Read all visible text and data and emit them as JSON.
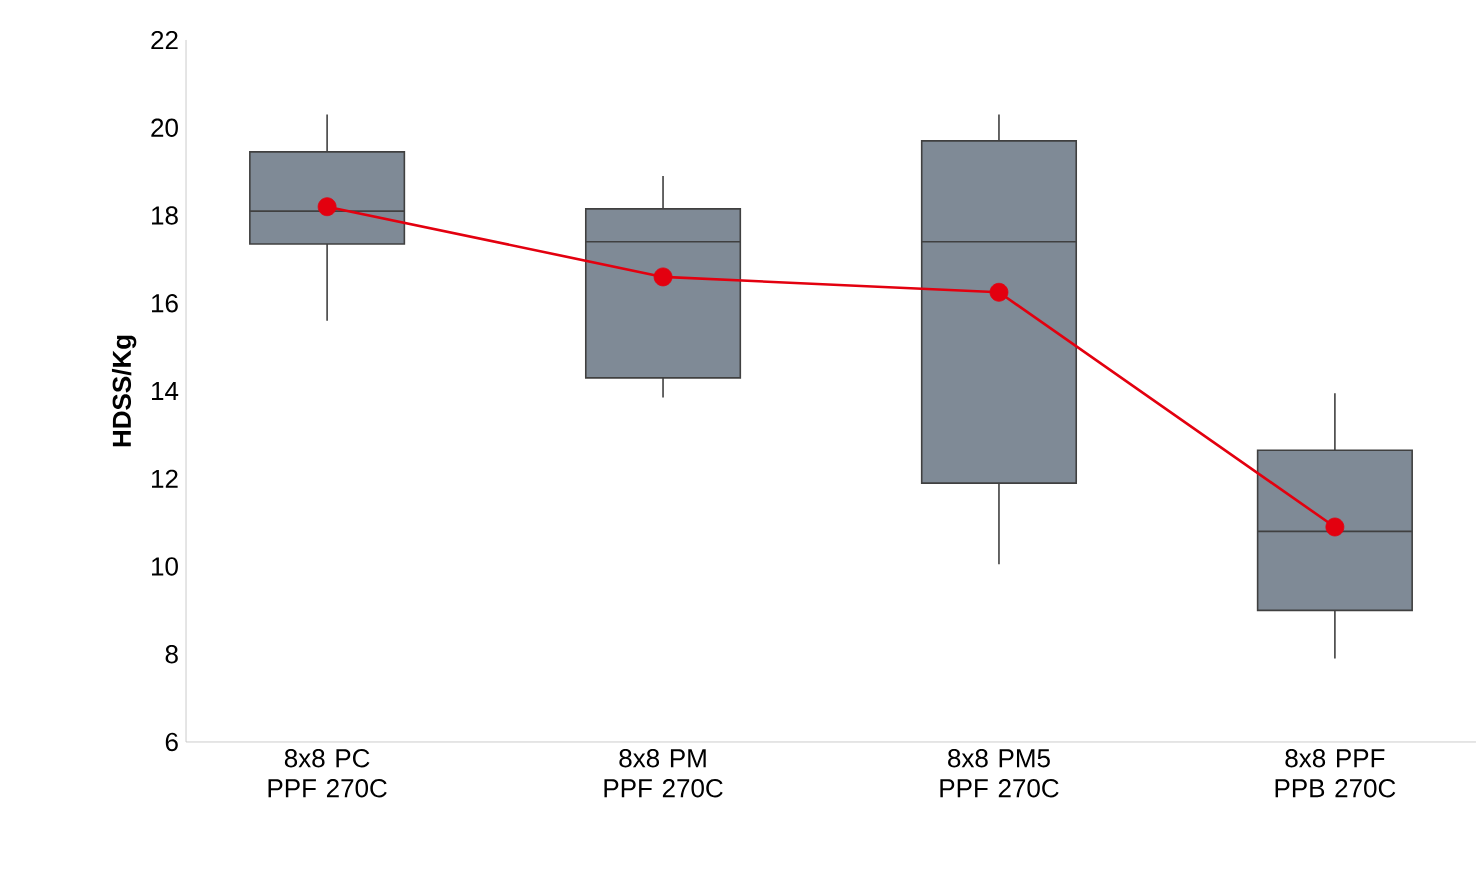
{
  "chart_data": {
    "type": "box",
    "ylabel": "HDSS/Kg",
    "categories": [
      "8x8 PC PPF 270C",
      "8x8 PM PPF 270C",
      "8x8 PM5 PPF 270C",
      "8x8 PPF PPB 270C"
    ],
    "color": "#7f8a96",
    "boxes": [
      {
        "low": 15.6,
        "q1": 17.35,
        "median": 18.1,
        "q3": 19.45,
        "high": 20.3
      },
      {
        "low": 13.85,
        "q1": 14.3,
        "median": 17.4,
        "q3": 18.15,
        "high": 18.9
      },
      {
        "low": 10.05,
        "q1": 11.9,
        "median": 17.4,
        "q3": 19.7,
        "high": 20.3
      },
      {
        "low": 7.9,
        "q1": 9.0,
        "median": 10.8,
        "q3": 12.65,
        "high": 13.95
      }
    ],
    "series": [
      {
        "type": "line",
        "color": "#e3000f",
        "marker": "circle",
        "values": [
          18.2,
          16.6,
          16.25,
          10.9
        ]
      }
    ],
    "ylim": [
      6,
      22
    ],
    "yticks": [
      6,
      8,
      10,
      12,
      14,
      16,
      18,
      20,
      22
    ],
    "grid": false
  }
}
